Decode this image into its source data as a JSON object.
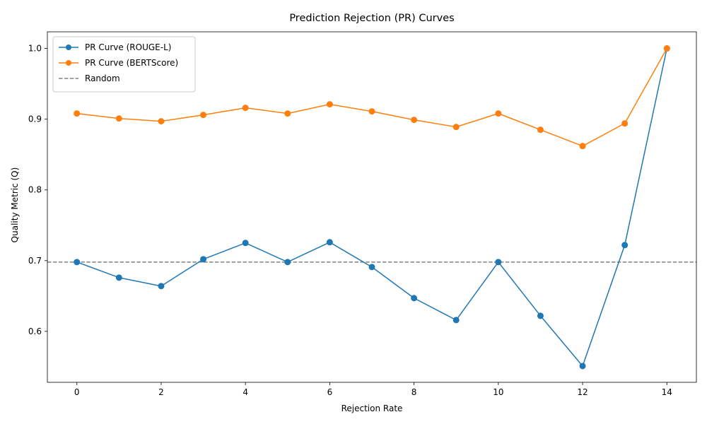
{
  "chart_data": {
    "type": "line",
    "title": "Prediction Rejection (PR) Curves",
    "xlabel": "Rejection Rate",
    "ylabel": "Quality Metric (Q)",
    "xlim": [
      -0.7,
      14.7
    ],
    "ylim": [
      0.528,
      1.0235
    ],
    "xticks": [
      0,
      2,
      4,
      6,
      8,
      10,
      12,
      14
    ],
    "xtick_labels": [
      "0",
      "2",
      "4",
      "6",
      "8",
      "10",
      "12",
      "14"
    ],
    "yticks": [
      0.6,
      0.7,
      0.8,
      0.9,
      1.0
    ],
    "ytick_labels": [
      "0.6",
      "0.7",
      "0.8",
      "0.9",
      "1.0"
    ],
    "grid": false,
    "legend_position": "top-left",
    "x": [
      0,
      1,
      2,
      3,
      4,
      5,
      6,
      7,
      8,
      9,
      10,
      11,
      12,
      13,
      14
    ],
    "series": [
      {
        "name": "PR Curve (ROUGE-L)",
        "color": "#1f77b4",
        "marker": "circle",
        "style": "solid",
        "values": [
          0.698,
          0.676,
          0.664,
          0.702,
          0.725,
          0.698,
          0.726,
          0.691,
          0.647,
          0.616,
          0.698,
          0.622,
          0.551,
          0.722,
          1.0
        ]
      },
      {
        "name": "PR Curve (BERTScore)",
        "color": "#ff7f0e",
        "marker": "circle",
        "style": "solid",
        "values": [
          0.908,
          0.901,
          0.897,
          0.906,
          0.916,
          0.908,
          0.921,
          0.911,
          0.899,
          0.889,
          0.908,
          0.885,
          0.862,
          0.894,
          1.0
        ]
      }
    ],
    "reference_lines": [
      {
        "name": "Random",
        "orientation": "horizontal",
        "y": 0.698,
        "color": "#808080",
        "style": "dashed"
      }
    ]
  }
}
